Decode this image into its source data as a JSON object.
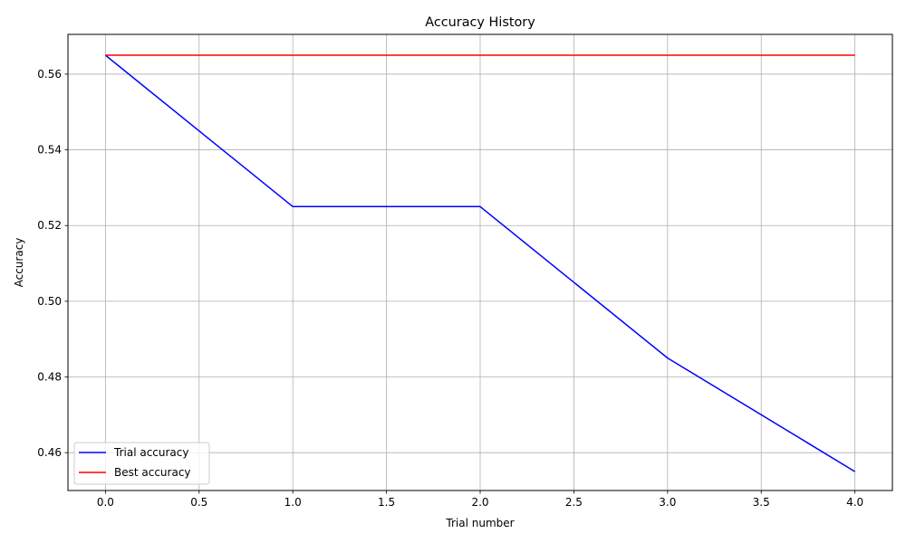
{
  "chart_data": {
    "type": "line",
    "title": "Accuracy History",
    "xlabel": "Trial number",
    "ylabel": "Accuracy",
    "xlim": [
      -0.2,
      4.2
    ],
    "ylim": [
      0.45,
      0.5705
    ],
    "x_ticks": [
      0.0,
      0.5,
      1.0,
      1.5,
      2.0,
      2.5,
      3.0,
      3.5,
      4.0
    ],
    "x_tick_labels": [
      "0.0",
      "0.5",
      "1.0",
      "1.5",
      "2.0",
      "2.5",
      "3.0",
      "3.5",
      "4.0"
    ],
    "y_ticks": [
      0.46,
      0.48,
      0.5,
      0.52,
      0.54,
      0.56
    ],
    "y_tick_labels": [
      "0.46",
      "0.48",
      "0.50",
      "0.52",
      "0.54",
      "0.56"
    ],
    "grid": true,
    "legend_position": "lower-left",
    "x": [
      0,
      1,
      2,
      3,
      4
    ],
    "series": [
      {
        "name": "Trial accuracy",
        "color": "#0000ff",
        "values": [
          0.565,
          0.525,
          0.525,
          0.485,
          0.455
        ]
      },
      {
        "name": "Best accuracy",
        "color": "#ff0000",
        "values": [
          0.565,
          0.565,
          0.565,
          0.565,
          0.565
        ]
      }
    ]
  }
}
